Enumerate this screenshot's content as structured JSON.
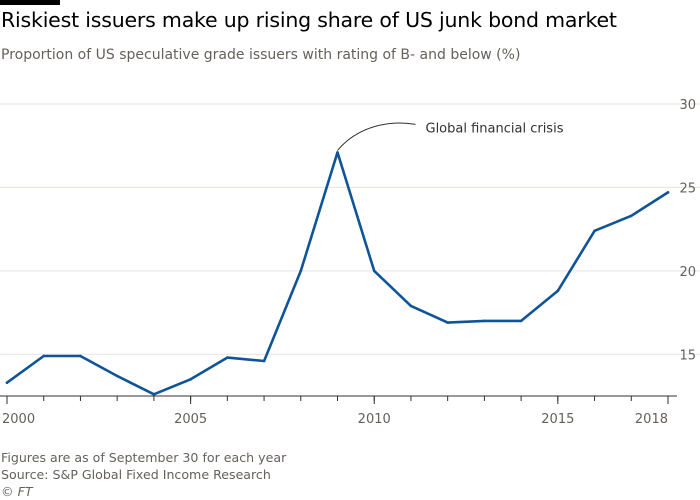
{
  "header": {
    "title": "Riskiest issuers make up rising share of US junk bond market",
    "subtitle": "Proportion of US speculative grade issuers with rating of B- and below (%)"
  },
  "footer": {
    "note": "Figures are as of September 30 for each year",
    "source": "Source: S&P Global Fixed Income Research",
    "copyright": "© FT"
  },
  "colors": {
    "line": "#0f5499",
    "grid": "#e9e3df",
    "axis": "#66605c",
    "text": "#66605c"
  },
  "chart_data": {
    "type": "line",
    "title": "Riskiest issuers make up rising share of US junk bond market",
    "subtitle": "Proportion of US speculative grade issuers with rating of B- and below (%)",
    "x": [
      2000,
      2001,
      2002,
      2003,
      2004,
      2005,
      2006,
      2007,
      2008,
      2009,
      2010,
      2011,
      2012,
      2013,
      2014,
      2015,
      2016,
      2017,
      2018
    ],
    "series": [
      {
        "values": [
          13.3,
          14.9,
          14.9,
          13.7,
          12.6,
          13.5,
          14.8,
          14.6,
          20.0,
          27.1,
          20.0,
          17.9,
          16.9,
          17.0,
          17.0,
          18.8,
          22.4,
          23.3,
          24.7
        ]
      }
    ],
    "xlim": [
      2000,
      2018
    ],
    "ylim": [
      12.5,
      30
    ],
    "yticks": [
      15,
      20,
      25,
      30
    ],
    "xticks": [
      2000,
      2005,
      2010,
      2015,
      2018
    ],
    "grid": true,
    "annotations": [
      {
        "text": "Global financial crisis",
        "x": 2009,
        "y": 27.1
      }
    ]
  }
}
